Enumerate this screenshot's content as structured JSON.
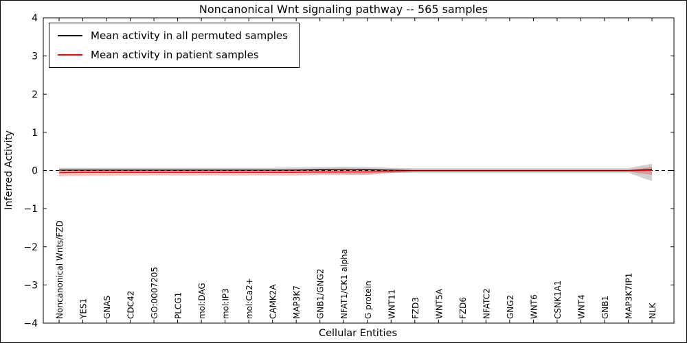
{
  "chart_data": {
    "type": "line",
    "title": "Noncanonical Wnt signaling pathway -- 565 samples",
    "xlabel": "Cellular Entities",
    "ylabel": "Inferred Activity",
    "ylim": [
      -4,
      4
    ],
    "ytick_step": 1,
    "grid": false,
    "legend_position": "upper left",
    "categories": [
      "Noncanonical Wnts/FZD",
      "YES1",
      "GNAS",
      "CDC42",
      "GO:0007205",
      "PLCG1",
      "mol:DAG",
      "mol:IP3",
      "mol:Ca2+",
      "CAMK2A",
      "MAP3K7",
      "GNB1/GNG2",
      "NFAT1/CK1 alpha",
      "G protein",
      "WNT11",
      "FZD3",
      "WNT5A",
      "FZD6",
      "NFATC2",
      "GNG2",
      "WNT6",
      "CSNK1A1",
      "WNT4",
      "GNB1",
      "MAP3K7IP1",
      "NLK"
    ],
    "zero_line": {
      "value": 0,
      "style": "dashed",
      "color": "#000000"
    },
    "series": [
      {
        "key": "permuted",
        "name": "Mean activity in all permuted samples",
        "color": "#000000",
        "band_color": "rgba(0,0,0,0.18)",
        "values": [
          0.01,
          0.01,
          0.01,
          0.01,
          0.01,
          0.01,
          0.01,
          0.01,
          0.01,
          0.01,
          0.01,
          0.02,
          0.03,
          0.02,
          0.01,
          0,
          0,
          0,
          0,
          0,
          0,
          0,
          0,
          0,
          0,
          0.02
        ],
        "band_upper": [
          0.07,
          0.07,
          0.07,
          0.07,
          0.07,
          0.07,
          0.07,
          0.07,
          0.07,
          0.07,
          0.08,
          0.09,
          0.1,
          0.09,
          0.07,
          0.06,
          0.06,
          0.06,
          0.06,
          0.06,
          0.06,
          0.06,
          0.06,
          0.06,
          0.06,
          0.18
        ],
        "band_lower": [
          -0.07,
          -0.07,
          -0.07,
          -0.07,
          -0.07,
          -0.07,
          -0.07,
          -0.07,
          -0.07,
          -0.07,
          -0.07,
          -0.08,
          -0.08,
          -0.08,
          -0.07,
          -0.06,
          -0.06,
          -0.06,
          -0.06,
          -0.06,
          -0.06,
          -0.06,
          -0.06,
          -0.06,
          -0.06,
          -0.28
        ]
      },
      {
        "key": "patient",
        "name": "Mean activity in patient samples",
        "color": "#ff0000",
        "band_color": "rgba(255,0,0,0.25)",
        "values": [
          -0.06,
          -0.05,
          -0.05,
          -0.05,
          -0.05,
          -0.05,
          -0.05,
          -0.05,
          -0.05,
          -0.05,
          -0.05,
          -0.04,
          -0.04,
          -0.04,
          -0.02,
          -0.01,
          -0.01,
          -0.01,
          -0.01,
          -0.01,
          -0.01,
          -0.01,
          -0.01,
          -0.01,
          -0.01,
          0
        ],
        "band_upper": [
          0.02,
          0.02,
          0.02,
          0.02,
          0.02,
          0.02,
          0.02,
          0.02,
          0.02,
          0.02,
          0.03,
          0.04,
          0.05,
          0.04,
          0.02,
          0.01,
          0.01,
          0.01,
          0.01,
          0.01,
          0.01,
          0.01,
          0.01,
          0.01,
          0.01,
          0.1
        ],
        "band_lower": [
          -0.15,
          -0.14,
          -0.14,
          -0.13,
          -0.13,
          -0.13,
          -0.13,
          -0.13,
          -0.13,
          -0.13,
          -0.13,
          -0.12,
          -0.12,
          -0.12,
          -0.06,
          -0.03,
          -0.03,
          -0.03,
          -0.03,
          -0.03,
          -0.03,
          -0.03,
          -0.03,
          -0.03,
          -0.03,
          -0.12
        ]
      }
    ]
  }
}
